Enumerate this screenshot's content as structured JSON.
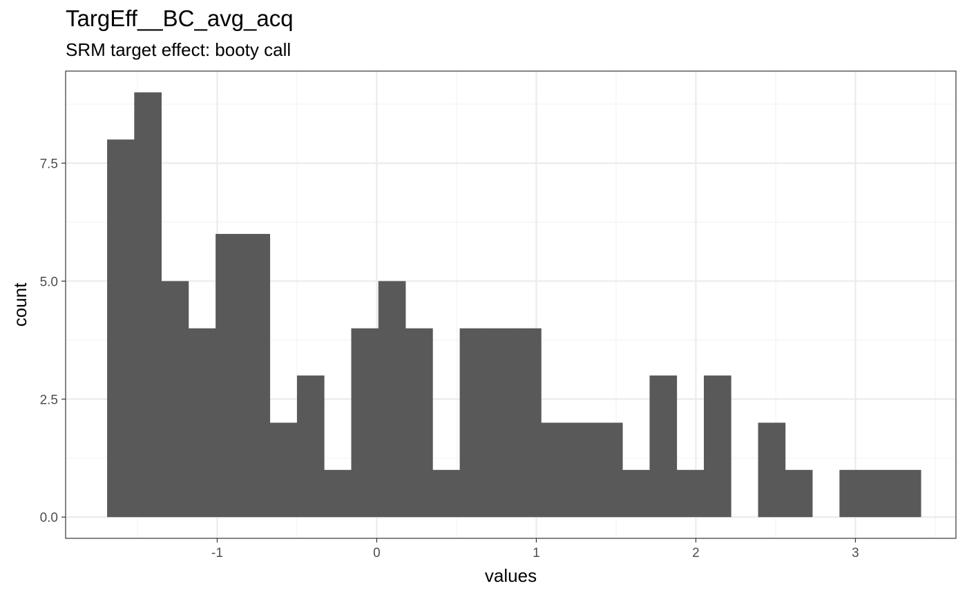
{
  "chart_data": {
    "type": "bar",
    "title": "TargEff__BC_avg_acq",
    "subtitle": "SRM target effect: booty call",
    "xlabel": "values",
    "ylabel": "count",
    "x_ticks": [
      "-1",
      "0",
      "1",
      "2",
      "3"
    ],
    "y_ticks": [
      "0.0",
      "2.5",
      "5.0",
      "7.5"
    ],
    "xlim": [
      -1.95,
      3.63
    ],
    "ylim": [
      -0.45,
      9.45
    ],
    "grid": true,
    "bar_color": "#595959",
    "bin_width": 0.17,
    "bins": [
      {
        "x0": -1.69,
        "x1": -1.52,
        "count": 8
      },
      {
        "x0": -1.52,
        "x1": -1.35,
        "count": 9
      },
      {
        "x0": -1.35,
        "x1": -1.18,
        "count": 5
      },
      {
        "x0": -1.18,
        "x1": -1.01,
        "count": 4
      },
      {
        "x0": -1.01,
        "x1": -0.84,
        "count": 6
      },
      {
        "x0": -0.84,
        "x1": -0.67,
        "count": 6
      },
      {
        "x0": -0.67,
        "x1": -0.5,
        "count": 2
      },
      {
        "x0": -0.5,
        "x1": -0.33,
        "count": 3
      },
      {
        "x0": -0.33,
        "x1": -0.16,
        "count": 1
      },
      {
        "x0": -0.16,
        "x1": 0.01,
        "count": 4
      },
      {
        "x0": 0.01,
        "x1": 0.18,
        "count": 5
      },
      {
        "x0": 0.18,
        "x1": 0.35,
        "count": 4
      },
      {
        "x0": 0.35,
        "x1": 0.52,
        "count": 1
      },
      {
        "x0": 0.52,
        "x1": 0.69,
        "count": 4
      },
      {
        "x0": 0.69,
        "x1": 0.86,
        "count": 4
      },
      {
        "x0": 0.86,
        "x1": 1.03,
        "count": 4
      },
      {
        "x0": 1.03,
        "x1": 1.2,
        "count": 2
      },
      {
        "x0": 1.2,
        "x1": 1.37,
        "count": 2
      },
      {
        "x0": 1.37,
        "x1": 1.54,
        "count": 2
      },
      {
        "x0": 1.54,
        "x1": 1.71,
        "count": 1
      },
      {
        "x0": 1.71,
        "x1": 1.88,
        "count": 3
      },
      {
        "x0": 1.88,
        "x1": 2.05,
        "count": 1
      },
      {
        "x0": 2.05,
        "x1": 2.22,
        "count": 3
      },
      {
        "x0": 2.22,
        "x1": 2.39,
        "count": 0
      },
      {
        "x0": 2.39,
        "x1": 2.56,
        "count": 2
      },
      {
        "x0": 2.56,
        "x1": 2.73,
        "count": 1
      },
      {
        "x0": 2.73,
        "x1": 2.9,
        "count": 0
      },
      {
        "x0": 2.9,
        "x1": 3.07,
        "count": 1
      },
      {
        "x0": 3.07,
        "x1": 3.24,
        "count": 1
      },
      {
        "x0": 3.24,
        "x1": 3.41,
        "count": 1
      }
    ]
  }
}
